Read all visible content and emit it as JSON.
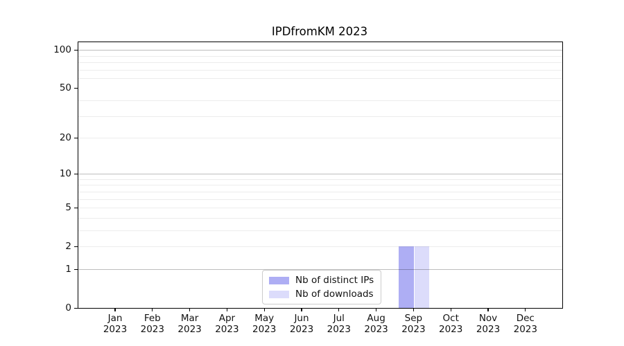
{
  "title": "IPDfromKM 2023",
  "chart_data": {
    "type": "bar",
    "title": "IPDfromKM 2023",
    "categories": [
      "Jan",
      "Feb",
      "Mar",
      "Apr",
      "May",
      "Jun",
      "Jul",
      "Aug",
      "Sep",
      "Oct",
      "Nov",
      "Dec"
    ],
    "category_year_line": "2023",
    "x_tick_labels": [
      "Jan 2023",
      "Feb 2023",
      "Mar 2023",
      "Apr 2023",
      "May 2023",
      "Jun 2023",
      "Jul 2023",
      "Aug 2023",
      "Sep 2023",
      "Oct 2023",
      "Nov 2023",
      "Dec 2023"
    ],
    "series": [
      {
        "name": "Nb of distinct IPs",
        "color": "#aeaef4",
        "values": [
          0,
          0,
          0,
          0,
          0,
          0,
          0,
          0,
          2,
          0,
          0,
          0
        ]
      },
      {
        "name": "Nb of downloads",
        "color": "#dcdcfb",
        "values": [
          0,
          0,
          0,
          0,
          0,
          0,
          0,
          0,
          2,
          0,
          0,
          0
        ]
      }
    ],
    "yscale": "log1p",
    "ylim": [
      0,
      115
    ],
    "yticks": [
      0,
      1,
      2,
      5,
      10,
      20,
      50,
      100
    ],
    "major_gridlines": [
      1,
      10,
      100
    ],
    "minor_gridlines": [
      2,
      3,
      4,
      5,
      6,
      7,
      8,
      9,
      20,
      30,
      40,
      60,
      70,
      80,
      90
    ],
    "grid": "horizontal",
    "legend_position": "lower-center-inside"
  },
  "colors": {
    "major_grid": "#bdbdbd",
    "minor_grid": "#ececec",
    "spine": "#000000",
    "background": "#ffffff",
    "bar_distinct_ips": "#aeaef4",
    "bar_downloads": "#dcdcfb"
  }
}
